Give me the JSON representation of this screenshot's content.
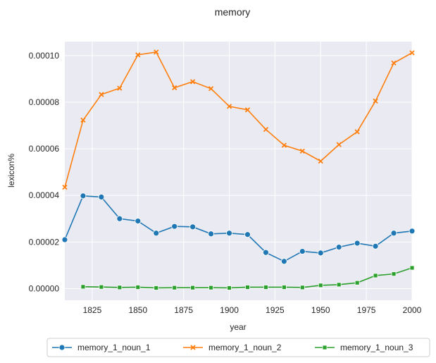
{
  "chart_data": {
    "type": "line",
    "title": "memory",
    "xlabel": "year",
    "ylabel": "lexicon%",
    "xlim": [
      1810,
      2000
    ],
    "ylim": [
      -5e-06,
      0.000106
    ],
    "x_ticks": [
      1825,
      1850,
      1875,
      1900,
      1925,
      1950,
      1975,
      2000
    ],
    "y_ticks": [
      0.0,
      2e-05,
      4e-05,
      6e-05,
      8e-05,
      0.0001
    ],
    "y_tick_labels": [
      "0.00000",
      "0.00002",
      "0.00004",
      "0.00006",
      "0.00008",
      "0.00010"
    ],
    "grid": true,
    "legend_placement": "bottom-center",
    "series": [
      {
        "name": "memory_1_noun_1",
        "color": "#1f77b4",
        "marker": "circle",
        "x": [
          1810,
          1820,
          1830,
          1840,
          1850,
          1860,
          1870,
          1880,
          1890,
          1900,
          1910,
          1920,
          1930,
          1940,
          1950,
          1960,
          1970,
          1980,
          1990,
          2000
        ],
        "values": [
          2.1e-05,
          3.98e-05,
          3.93e-05,
          3e-05,
          2.9e-05,
          2.38e-05,
          2.67e-05,
          2.65e-05,
          2.35e-05,
          2.38e-05,
          2.32e-05,
          1.55e-05,
          1.17e-05,
          1.6e-05,
          1.53e-05,
          1.78e-05,
          1.95e-05,
          1.82e-05,
          2.38e-05,
          2.47e-05
        ]
      },
      {
        "name": "memory_1_noun_2",
        "color": "#ff7f0e",
        "marker": "x",
        "x": [
          1810,
          1820,
          1830,
          1840,
          1850,
          1860,
          1870,
          1880,
          1890,
          1900,
          1910,
          1920,
          1930,
          1940,
          1950,
          1960,
          1970,
          1980,
          1990,
          2000
        ],
        "values": [
          4.35e-05,
          7.23e-05,
          8.33e-05,
          8.6e-05,
          0.0001003,
          0.0001015,
          8.62e-05,
          8.88e-05,
          8.58e-05,
          7.82e-05,
          7.67e-05,
          6.83e-05,
          6.15e-05,
          5.9e-05,
          5.47e-05,
          6.18e-05,
          6.73e-05,
          8.05e-05,
          9.68e-05,
          0.0001012
        ]
      },
      {
        "name": "memory_1_noun_3",
        "color": "#2ca02c",
        "marker": "square",
        "x": [
          1820,
          1830,
          1840,
          1850,
          1860,
          1870,
          1880,
          1890,
          1900,
          1910,
          1920,
          1930,
          1940,
          1950,
          1960,
          1970,
          1980,
          1990,
          2000
        ],
        "values": [
          8e-07,
          7e-07,
          5e-07,
          6e-07,
          3e-07,
          4e-07,
          4e-07,
          4e-07,
          3e-07,
          6e-07,
          6e-07,
          6e-07,
          5e-07,
          1.4e-06,
          1.7e-06,
          2.5e-06,
          5.6e-06,
          6.3e-06,
          8.9e-06
        ]
      }
    ]
  }
}
